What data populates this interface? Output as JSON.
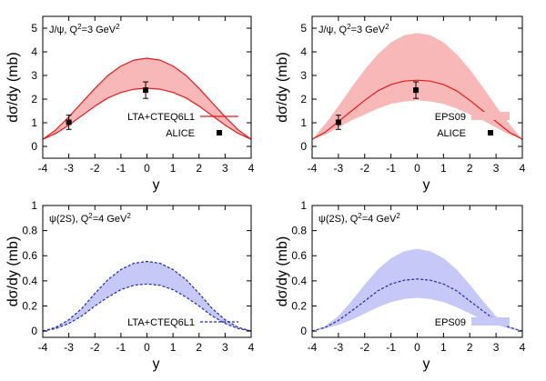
{
  "colors": {
    "red": "#e41a1c",
    "redFill": "#f9b8b8",
    "blue": "#1f2aa8",
    "blueFill": "#c6c8f7",
    "black": "#000000"
  },
  "chart_data": [
    {
      "type": "area",
      "panel": "top-left",
      "annotation": {
        "main": "J/ψ, Q",
        "sup": "2",
        "rest": "=3 GeV",
        "sup2": "2"
      },
      "xlabel": "y",
      "ylabel": "dσ/dy (mb)",
      "xlim": [
        -4,
        4
      ],
      "ylim": [
        -0.5,
        5.5
      ],
      "xticks": [
        -4,
        -3,
        -2,
        -1,
        0,
        1,
        2,
        3,
        4
      ],
      "yticks": [
        0,
        1,
        2,
        3,
        4,
        5
      ],
      "legend_position": "bottom-right",
      "band": {
        "name": "LTA+CTEQ6L1",
        "style": "filled-band-solid-edges",
        "x": [
          -4,
          -3.5,
          -3,
          -2.5,
          -2,
          -1.5,
          -1,
          -0.5,
          0,
          0.5,
          1,
          1.5,
          2,
          2.5,
          3,
          3.5,
          4
        ],
        "lower": [
          0.3,
          0.55,
          0.9,
          1.3,
          1.7,
          2.05,
          2.28,
          2.42,
          2.46,
          2.42,
          2.28,
          2.05,
          1.7,
          1.3,
          0.9,
          0.55,
          0.3
        ],
        "upper": [
          0.3,
          0.7,
          1.25,
          1.85,
          2.45,
          3.0,
          3.4,
          3.65,
          3.73,
          3.65,
          3.4,
          3.0,
          2.45,
          1.85,
          1.25,
          0.7,
          0.3
        ]
      },
      "points": {
        "name": "ALICE",
        "x": [
          -3.0,
          -0.05
        ],
        "y": [
          1.02,
          2.38
        ],
        "err": [
          0.3,
          0.35
        ]
      }
    },
    {
      "type": "area",
      "panel": "top-right",
      "annotation": {
        "main": "J/ψ, Q",
        "sup": "2",
        "rest": "=3 GeV",
        "sup2": "2"
      },
      "xlabel": "y",
      "ylabel": "dσ/dy (mb)",
      "xlim": [
        -4,
        4
      ],
      "ylim": [
        -0.5,
        5.5
      ],
      "xticks": [
        -4,
        -3,
        -2,
        -1,
        0,
        1,
        2,
        3,
        4
      ],
      "yticks": [
        0,
        1,
        2,
        3,
        4,
        5
      ],
      "legend_position": "bottom-right",
      "band": {
        "name": "EPS09",
        "style": "filled-band",
        "x": [
          -4,
          -3.5,
          -3,
          -2.5,
          -2,
          -1.5,
          -1,
          -0.5,
          0,
          0.5,
          1,
          1.5,
          2,
          2.5,
          3,
          3.5,
          4
        ],
        "lower": [
          0.3,
          0.5,
          0.8,
          1.1,
          1.35,
          1.6,
          1.8,
          1.9,
          1.95,
          1.9,
          1.8,
          1.6,
          1.35,
          1.1,
          0.8,
          0.5,
          0.3
        ],
        "upper": [
          0.3,
          0.95,
          1.7,
          2.5,
          3.25,
          3.9,
          4.4,
          4.7,
          4.8,
          4.7,
          4.4,
          3.9,
          3.25,
          2.5,
          1.7,
          0.95,
          0.3
        ]
      },
      "central": {
        "x": [
          -4,
          -3.5,
          -3,
          -2.5,
          -2,
          -1.5,
          -1,
          -0.5,
          0,
          0.5,
          1,
          1.5,
          2,
          2.5,
          3,
          3.5,
          4
        ],
        "y": [
          0.3,
          0.6,
          1.05,
          1.5,
          1.95,
          2.35,
          2.62,
          2.76,
          2.8,
          2.76,
          2.62,
          2.35,
          1.95,
          1.5,
          1.05,
          0.6,
          0.3
        ],
        "style": "solid"
      },
      "points": {
        "name": "ALICE",
        "x": [
          -3.0,
          -0.05
        ],
        "y": [
          1.02,
          2.38
        ],
        "err": [
          0.3,
          0.35
        ]
      }
    },
    {
      "type": "area",
      "panel": "bottom-left",
      "annotation": {
        "main": "ψ(2S), Q",
        "sup": "2",
        "rest": "=4 GeV",
        "sup2": "2"
      },
      "xlabel": "y",
      "ylabel": "dσ/dy (mb)",
      "xlim": [
        -4,
        4
      ],
      "ylim": [
        -0.05,
        1.0
      ],
      "xticks": [
        -4,
        -3,
        -2,
        -1,
        0,
        1,
        2,
        3,
        4
      ],
      "yticks": [
        0,
        0.2,
        0.4,
        0.6,
        0.8,
        1
      ],
      "legend_position": "bottom-right",
      "band": {
        "name": "LTA+CTEQ6L1",
        "style": "filled-band-dashed-edges",
        "x": [
          -4,
          -3.5,
          -3,
          -2.5,
          -2,
          -1.5,
          -1,
          -0.5,
          0,
          0.5,
          1,
          1.5,
          2,
          2.5,
          3,
          3.5,
          4
        ],
        "lower": [
          0.0,
          0.02,
          0.06,
          0.12,
          0.2,
          0.27,
          0.33,
          0.365,
          0.375,
          0.365,
          0.33,
          0.27,
          0.2,
          0.12,
          0.06,
          0.02,
          0.0
        ],
        "upper": [
          0.0,
          0.03,
          0.09,
          0.18,
          0.3,
          0.41,
          0.49,
          0.54,
          0.555,
          0.54,
          0.49,
          0.41,
          0.3,
          0.18,
          0.09,
          0.03,
          0.0
        ]
      }
    },
    {
      "type": "area",
      "panel": "bottom-right",
      "annotation": {
        "main": "ψ(2S), Q",
        "sup": "2",
        "rest": "=4 GeV",
        "sup2": "2"
      },
      "xlabel": "y",
      "ylabel": "dσ/dy (mb)",
      "xlim": [
        -4,
        4
      ],
      "ylim": [
        -0.05,
        1.0
      ],
      "xticks": [
        -4,
        -3,
        -2,
        -1,
        0,
        1,
        2,
        3,
        4
      ],
      "yticks": [
        0,
        0.2,
        0.4,
        0.6,
        0.8,
        1
      ],
      "legend_position": "bottom-right",
      "band": {
        "name": "EPS09",
        "style": "filled-band",
        "x": [
          -4,
          -3.5,
          -3,
          -2.5,
          -2,
          -1.5,
          -1,
          -0.5,
          0,
          0.5,
          1,
          1.5,
          2,
          2.5,
          3,
          3.5,
          4
        ],
        "lower": [
          0.0,
          0.02,
          0.05,
          0.09,
          0.14,
          0.19,
          0.23,
          0.255,
          0.265,
          0.255,
          0.23,
          0.19,
          0.14,
          0.09,
          0.05,
          0.02,
          0.0
        ],
        "upper": [
          0.0,
          0.04,
          0.12,
          0.24,
          0.37,
          0.49,
          0.58,
          0.635,
          0.655,
          0.635,
          0.58,
          0.49,
          0.37,
          0.24,
          0.12,
          0.04,
          0.0
        ]
      },
      "central": {
        "x": [
          -4,
          -3.5,
          -3,
          -2.5,
          -2,
          -1.5,
          -1,
          -0.5,
          0,
          0.5,
          1,
          1.5,
          2,
          2.5,
          3,
          3.5,
          4
        ],
        "y": [
          0.0,
          0.03,
          0.085,
          0.16,
          0.24,
          0.32,
          0.375,
          0.405,
          0.415,
          0.405,
          0.375,
          0.32,
          0.24,
          0.16,
          0.085,
          0.03,
          0.0
        ],
        "style": "dashed"
      }
    }
  ]
}
